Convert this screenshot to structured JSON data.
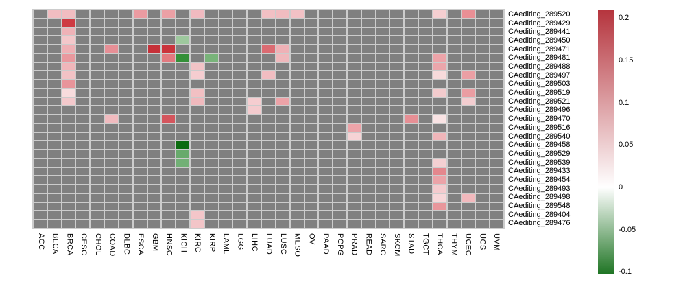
{
  "chart_data": {
    "type": "heatmap",
    "title": "",
    "xlabel": "",
    "ylabel": "",
    "grid": "cell-gaps-visible",
    "legend_position": "right",
    "na_color": "#808080",
    "x_categories": [
      "ACC",
      "BLCA",
      "BRCA",
      "CESC",
      "CHOL",
      "COAD",
      "DLBC",
      "ESCA",
      "GBM",
      "HNSC",
      "KICH",
      "KIRC",
      "KIRP",
      "LAML",
      "LGG",
      "LIHC",
      "LUAD",
      "LUSC",
      "MESO",
      "OV",
      "PAAD",
      "PCPG",
      "PRAD",
      "READ",
      "SARC",
      "SKCM",
      "STAD",
      "TGCT",
      "THCA",
      "THYM",
      "UCEC",
      "UCS",
      "UVM"
    ],
    "y_categories": [
      "CAediting_289520",
      "CAediting_289429",
      "CAediting_289441",
      "CAediting_289450",
      "CAediting_289471",
      "CAediting_289481",
      "CAediting_289488",
      "CAediting_289497",
      "CAediting_289503",
      "CAediting_289519",
      "CAediting_289521",
      "CAediting_289496",
      "CAediting_289470",
      "CAediting_289516",
      "CAediting_289540",
      "CAediting_289458",
      "CAediting_289529",
      "CAediting_289539",
      "CAediting_289433",
      "CAediting_289454",
      "CAediting_289493",
      "CAediting_289498",
      "CAediting_289548",
      "CAediting_289404",
      "CAediting_289476"
    ],
    "cells": [
      {
        "r": "CAediting_289520",
        "c": "BLCA",
        "v": 0.04,
        "color": "#f1bdc1"
      },
      {
        "r": "CAediting_289520",
        "c": "BRCA",
        "v": 0.04,
        "color": "#f1bdc1"
      },
      {
        "r": "CAediting_289520",
        "c": "ESCA",
        "v": 0.06,
        "color": "#ea9ba1"
      },
      {
        "r": "CAediting_289520",
        "c": "HNSC",
        "v": 0.06,
        "color": "#eba0a5"
      },
      {
        "r": "CAediting_289520",
        "c": "KIRC",
        "v": 0.04,
        "color": "#f0bac0"
      },
      {
        "r": "CAediting_289520",
        "c": "LUAD",
        "v": 0.04,
        "color": "#f2c0c4"
      },
      {
        "r": "CAediting_289520",
        "c": "LUSC",
        "v": 0.04,
        "color": "#f1bcc0"
      },
      {
        "r": "CAediting_289520",
        "c": "MESO",
        "v": 0.04,
        "color": "#f2c1c5"
      },
      {
        "r": "CAediting_289520",
        "c": "THCA",
        "v": 0.03,
        "color": "#f5cfd1"
      },
      {
        "r": "CAediting_289520",
        "c": "UCEC",
        "v": 0.07,
        "color": "#e98f95"
      },
      {
        "r": "CAediting_289429",
        "c": "BRCA",
        "v": 0.15,
        "color": "#ce3a42"
      },
      {
        "r": "CAediting_289441",
        "c": "BRCA",
        "v": 0.045,
        "color": "#efb2b7"
      },
      {
        "r": "CAediting_289450",
        "c": "BRCA",
        "v": 0.035,
        "color": "#f4c7ca"
      },
      {
        "r": "CAediting_289450",
        "c": "KICH",
        "v": -0.035,
        "color": "#9ec99e"
      },
      {
        "r": "CAediting_289471",
        "c": "BRCA",
        "v": 0.045,
        "color": "#efb0b5"
      },
      {
        "r": "CAediting_289471",
        "c": "COAD",
        "v": 0.07,
        "color": "#e78f96"
      },
      {
        "r": "CAediting_289471",
        "c": "GBM",
        "v": 0.155,
        "color": "#c63139"
      },
      {
        "r": "CAediting_289471",
        "c": "HNSC",
        "v": 0.15,
        "color": "#cb333c"
      },
      {
        "r": "CAediting_289471",
        "c": "LUAD",
        "v": 0.1,
        "color": "#db6b72"
      },
      {
        "r": "CAediting_289471",
        "c": "LUSC",
        "v": 0.045,
        "color": "#efb1b6"
      },
      {
        "r": "CAediting_289481",
        "c": "BRCA",
        "v": 0.065,
        "color": "#e9989e"
      },
      {
        "r": "CAediting_289481",
        "c": "HNSC",
        "v": 0.09,
        "color": "#e2797f"
      },
      {
        "r": "CAediting_289481",
        "c": "KICH",
        "v": -0.085,
        "color": "#349038"
      },
      {
        "r": "CAediting_289481",
        "c": "KIRP",
        "v": -0.05,
        "color": "#79b47a"
      },
      {
        "r": "CAediting_289481",
        "c": "LUSC",
        "v": 0.04,
        "color": "#f0b8bc"
      },
      {
        "r": "CAediting_289481",
        "c": "THCA",
        "v": 0.055,
        "color": "#eda4a9"
      },
      {
        "r": "CAediting_289488",
        "c": "BRCA",
        "v": 0.045,
        "color": "#f0b6ba"
      },
      {
        "r": "CAediting_289488",
        "c": "KIRC",
        "v": 0.035,
        "color": "#f2c3c6"
      },
      {
        "r": "CAediting_289488",
        "c": "THCA",
        "v": 0.055,
        "color": "#eba6ab"
      },
      {
        "r": "CAediting_289497",
        "c": "BRCA",
        "v": 0.035,
        "color": "#f2c2c5"
      },
      {
        "r": "CAediting_289497",
        "c": "KIRC",
        "v": 0.03,
        "color": "#f5cdd0"
      },
      {
        "r": "CAediting_289497",
        "c": "LUAD",
        "v": 0.04,
        "color": "#f1bdc1"
      },
      {
        "r": "CAediting_289497",
        "c": "THCA",
        "v": 0.02,
        "color": "#f7dadb"
      },
      {
        "r": "CAediting_289497",
        "c": "UCEC",
        "v": 0.06,
        "color": "#eb9fa4"
      },
      {
        "r": "CAediting_289503",
        "c": "BRCA",
        "v": 0.07,
        "color": "#e8949a"
      },
      {
        "r": "CAediting_289519",
        "c": "BRCA",
        "v": 0.02,
        "color": "#f8dcdd"
      },
      {
        "r": "CAediting_289519",
        "c": "KIRC",
        "v": 0.04,
        "color": "#f2c0c3"
      },
      {
        "r": "CAediting_289519",
        "c": "THCA",
        "v": 0.03,
        "color": "#f3cbcd"
      },
      {
        "r": "CAediting_289519",
        "c": "UCEC",
        "v": 0.06,
        "color": "#ea9da2"
      },
      {
        "r": "CAediting_289521",
        "c": "BRCA",
        "v": 0.03,
        "color": "#f4c9cc"
      },
      {
        "r": "CAediting_289521",
        "c": "KIRC",
        "v": 0.04,
        "color": "#f0b9bd"
      },
      {
        "r": "CAediting_289521",
        "c": "LIHC",
        "v": 0.03,
        "color": "#f5cdd0"
      },
      {
        "r": "CAediting_289521",
        "c": "LUSC",
        "v": 0.055,
        "color": "#eda3a8"
      },
      {
        "r": "CAediting_289521",
        "c": "UCEC",
        "v": 0.03,
        "color": "#f3cdd0"
      },
      {
        "r": "CAediting_289496",
        "c": "LIHC",
        "v": 0.03,
        "color": "#f4cbce"
      },
      {
        "r": "CAediting_289470",
        "c": "COAD",
        "v": 0.04,
        "color": "#f1bbbf"
      },
      {
        "r": "CAediting_289470",
        "c": "HNSC",
        "v": 0.12,
        "color": "#d4555d"
      },
      {
        "r": "CAediting_289470",
        "c": "STAD",
        "v": 0.07,
        "color": "#e78f95"
      },
      {
        "r": "CAediting_289470",
        "c": "THCA",
        "v": 0.015,
        "color": "#f9e3e4"
      },
      {
        "r": "CAediting_289516",
        "c": "PRAD",
        "v": 0.055,
        "color": "#eda4a9"
      },
      {
        "r": "CAediting_289540",
        "c": "PRAD",
        "v": 0.025,
        "color": "#f6d3d5"
      },
      {
        "r": "CAediting_289540",
        "c": "THCA",
        "v": 0.045,
        "color": "#f0b6ba"
      },
      {
        "r": "CAediting_289458",
        "c": "KICH",
        "v": -0.13,
        "color": "#0c6b10"
      },
      {
        "r": "CAediting_289529",
        "c": "KICH",
        "v": -0.055,
        "color": "#68aa6c"
      },
      {
        "r": "CAediting_289539",
        "c": "KICH",
        "v": -0.05,
        "color": "#72b076"
      },
      {
        "r": "CAediting_289539",
        "c": "THCA",
        "v": 0.03,
        "color": "#f4d0d2"
      },
      {
        "r": "CAediting_289433",
        "c": "THCA",
        "v": 0.08,
        "color": "#e4878d"
      },
      {
        "r": "CAediting_289454",
        "c": "THCA",
        "v": 0.055,
        "color": "#eba3a8"
      },
      {
        "r": "CAediting_289493",
        "c": "THCA",
        "v": 0.03,
        "color": "#f4cbce"
      },
      {
        "r": "CAediting_289498",
        "c": "THCA",
        "v": 0.02,
        "color": "#f7d7d9"
      },
      {
        "r": "CAediting_289498",
        "c": "UCEC",
        "v": 0.04,
        "color": "#f2b9bd"
      },
      {
        "r": "CAediting_289548",
        "c": "THCA",
        "v": 0.065,
        "color": "#e8969b"
      },
      {
        "r": "CAediting_289404",
        "c": "KIRC",
        "v": 0.035,
        "color": "#f4c6c9"
      },
      {
        "r": "CAediting_289476",
        "c": "KIRC",
        "v": 0.035,
        "color": "#f3c5c8"
      }
    ],
    "colorbar": {
      "vmax": 0.21,
      "vmin": -0.103,
      "top_color": "#b5343d",
      "mid_color": "#ffffff",
      "bottom_color": "#1e7423",
      "tick_values": [
        0.2,
        0.15,
        0.1,
        0.05,
        0,
        -0.05,
        -0.1
      ],
      "tick_labels": [
        "0.2",
        "0.15",
        "0.1",
        "0.05",
        "0",
        "-0.05",
        "-0.1"
      ]
    }
  }
}
